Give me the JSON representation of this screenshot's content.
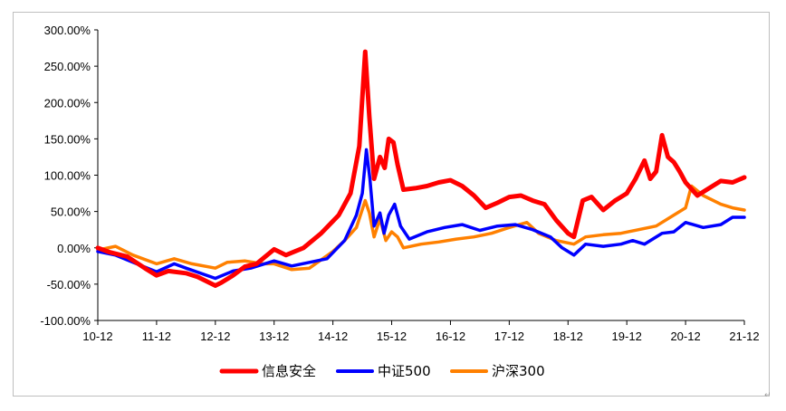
{
  "chart_data": {
    "type": "line",
    "title": "",
    "xlabel": "",
    "ylabel": "",
    "ylim": [
      -100,
      300
    ],
    "y_ticks": [
      300,
      250,
      200,
      150,
      100,
      50,
      0,
      -50,
      -100
    ],
    "y_tick_labels": [
      "300.00%",
      "250.00%",
      "200.00%",
      "150.00%",
      "100.00%",
      "50.00%",
      "0.00%",
      "-50.00%",
      "-100.00%"
    ],
    "x_tick_labels": [
      "10-12",
      "11-12",
      "12-12",
      "13-12",
      "14-12",
      "15-12",
      "16-12",
      "17-12",
      "18-12",
      "19-12",
      "20-12",
      "21-12"
    ],
    "x_range": [
      0,
      11
    ],
    "grid": false,
    "legend_position": "bottom",
    "series": [
      {
        "name": "信息安全",
        "color": "#ff0000",
        "points": [
          [
            0,
            0
          ],
          [
            0.2,
            -6
          ],
          [
            0.5,
            -12
          ],
          [
            0.8,
            -28
          ],
          [
            1,
            -38
          ],
          [
            1.2,
            -32
          ],
          [
            1.5,
            -35
          ],
          [
            1.7,
            -40
          ],
          [
            2,
            -52
          ],
          [
            2.1,
            -48
          ],
          [
            2.3,
            -38
          ],
          [
            2.5,
            -26
          ],
          [
            2.7,
            -22
          ],
          [
            3,
            -2
          ],
          [
            3.2,
            -10
          ],
          [
            3.5,
            0
          ],
          [
            3.8,
            20
          ],
          [
            4.1,
            45
          ],
          [
            4.3,
            75
          ],
          [
            4.45,
            140
          ],
          [
            4.55,
            270
          ],
          [
            4.62,
            180
          ],
          [
            4.7,
            95
          ],
          [
            4.8,
            125
          ],
          [
            4.88,
            110
          ],
          [
            4.95,
            150
          ],
          [
            5.03,
            145
          ],
          [
            5.1,
            115
          ],
          [
            5.2,
            80
          ],
          [
            5.4,
            82
          ],
          [
            5.6,
            85
          ],
          [
            5.8,
            90
          ],
          [
            6,
            93
          ],
          [
            6.2,
            85
          ],
          [
            6.4,
            72
          ],
          [
            6.6,
            55
          ],
          [
            6.8,
            62
          ],
          [
            7,
            70
          ],
          [
            7.2,
            72
          ],
          [
            7.4,
            65
          ],
          [
            7.6,
            60
          ],
          [
            7.8,
            38
          ],
          [
            8,
            20
          ],
          [
            8.1,
            15
          ],
          [
            8.25,
            65
          ],
          [
            8.4,
            70
          ],
          [
            8.6,
            52
          ],
          [
            8.8,
            65
          ],
          [
            9,
            75
          ],
          [
            9.15,
            95
          ],
          [
            9.3,
            120
          ],
          [
            9.4,
            95
          ],
          [
            9.5,
            105
          ],
          [
            9.6,
            155
          ],
          [
            9.7,
            125
          ],
          [
            9.8,
            118
          ],
          [
            9.9,
            105
          ],
          [
            10,
            90
          ],
          [
            10.2,
            72
          ],
          [
            10.4,
            82
          ],
          [
            10.6,
            92
          ],
          [
            10.8,
            90
          ],
          [
            11,
            97
          ]
        ]
      },
      {
        "name": "中证500",
        "color": "#0000ff",
        "points": [
          [
            0,
            -5
          ],
          [
            0.3,
            -10
          ],
          [
            0.6,
            -20
          ],
          [
            1,
            -33
          ],
          [
            1.3,
            -22
          ],
          [
            1.5,
            -28
          ],
          [
            2,
            -42
          ],
          [
            2.3,
            -32
          ],
          [
            2.6,
            -28
          ],
          [
            3,
            -18
          ],
          [
            3.3,
            -25
          ],
          [
            3.6,
            -20
          ],
          [
            3.9,
            -15
          ],
          [
            4.2,
            10
          ],
          [
            4.4,
            45
          ],
          [
            4.5,
            75
          ],
          [
            4.57,
            135
          ],
          [
            4.63,
            95
          ],
          [
            4.7,
            30
          ],
          [
            4.8,
            48
          ],
          [
            4.87,
            20
          ],
          [
            4.95,
            45
          ],
          [
            5.05,
            60
          ],
          [
            5.15,
            30
          ],
          [
            5.3,
            12
          ],
          [
            5.6,
            22
          ],
          [
            5.9,
            28
          ],
          [
            6.2,
            32
          ],
          [
            6.5,
            24
          ],
          [
            6.8,
            30
          ],
          [
            7.1,
            32
          ],
          [
            7.4,
            25
          ],
          [
            7.7,
            15
          ],
          [
            7.9,
            0
          ],
          [
            8.1,
            -10
          ],
          [
            8.3,
            5
          ],
          [
            8.6,
            2
          ],
          [
            8.9,
            5
          ],
          [
            9.1,
            10
          ],
          [
            9.3,
            5
          ],
          [
            9.6,
            20
          ],
          [
            9.8,
            22
          ],
          [
            10,
            35
          ],
          [
            10.3,
            28
          ],
          [
            10.6,
            32
          ],
          [
            10.8,
            42
          ],
          [
            11,
            42
          ]
        ]
      },
      {
        "name": "沪深300",
        "color": "#ff8000",
        "points": [
          [
            0,
            -3
          ],
          [
            0.3,
            2
          ],
          [
            0.6,
            -10
          ],
          [
            1,
            -22
          ],
          [
            1.3,
            -15
          ],
          [
            1.6,
            -22
          ],
          [
            2,
            -28
          ],
          [
            2.2,
            -20
          ],
          [
            2.5,
            -18
          ],
          [
            2.8,
            -22
          ],
          [
            3,
            -22
          ],
          [
            3.3,
            -30
          ],
          [
            3.6,
            -28
          ],
          [
            4,
            -5
          ],
          [
            4.2,
            10
          ],
          [
            4.4,
            28
          ],
          [
            4.55,
            65
          ],
          [
            4.62,
            48
          ],
          [
            4.7,
            15
          ],
          [
            4.8,
            40
          ],
          [
            4.9,
            10
          ],
          [
            5,
            22
          ],
          [
            5.1,
            15
          ],
          [
            5.2,
            0
          ],
          [
            5.5,
            5
          ],
          [
            5.8,
            8
          ],
          [
            6.1,
            12
          ],
          [
            6.4,
            15
          ],
          [
            6.7,
            20
          ],
          [
            7,
            28
          ],
          [
            7.3,
            35
          ],
          [
            7.5,
            20
          ],
          [
            7.8,
            10
          ],
          [
            8.1,
            5
          ],
          [
            8.3,
            15
          ],
          [
            8.6,
            18
          ],
          [
            8.9,
            20
          ],
          [
            9.2,
            25
          ],
          [
            9.5,
            30
          ],
          [
            9.8,
            45
          ],
          [
            10,
            55
          ],
          [
            10.1,
            85
          ],
          [
            10.3,
            72
          ],
          [
            10.6,
            60
          ],
          [
            10.8,
            55
          ],
          [
            11,
            52
          ]
        ]
      }
    ]
  }
}
